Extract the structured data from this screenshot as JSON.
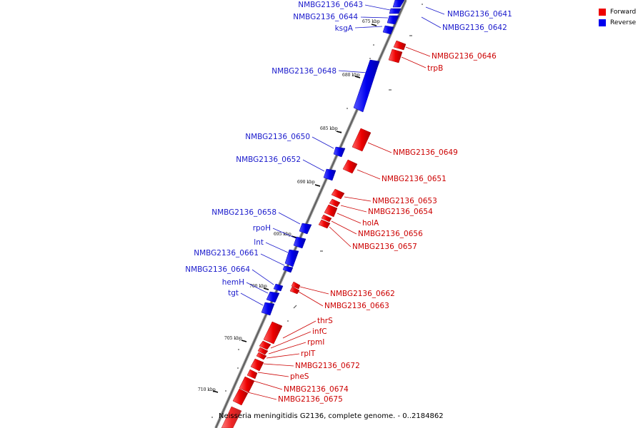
{
  "legend": {
    "forward_label": "Forward",
    "reverse_label": "Reverse",
    "forward_color": "#ee0000",
    "reverse_color": "#0000ee"
  },
  "caption": "Neisseria meningitidis G2136, complete genome. - 0..2184862",
  "ticks": [
    "675 kbp",
    "680 kbp",
    "685 kbp",
    "690 kbp",
    "695 kbp",
    "700 kbp",
    "705 kbp",
    "710 kbp"
  ],
  "genes_reverse": [
    "NMBG2136_0643",
    "NMBG2136_0644",
    "ksgA",
    "NMBG2136_0641",
    "NMBG2136_0642",
    "NMBG2136_0648",
    "NMBG2136_0650",
    "NMBG2136_0652",
    "NMBG2136_0658",
    "rpoH",
    "lnt",
    "NMBG2136_0661",
    "NMBG2136_0664",
    "hemH",
    "tgt"
  ],
  "genes_forward": [
    "NMBG2136_0646",
    "trpB",
    "NMBG2136_0649",
    "NMBG2136_0651",
    "NMBG2136_0653",
    "NMBG2136_0654",
    "holA",
    "NMBG2136_0656",
    "NMBG2136_0657",
    "NMBG2136_0662",
    "NMBG2136_0663",
    "thrS",
    "infC",
    "rpmI",
    "rplT",
    "NMBG2136_0672",
    "pheS",
    "NMBG2136_0674",
    "NMBG2136_0675"
  ]
}
